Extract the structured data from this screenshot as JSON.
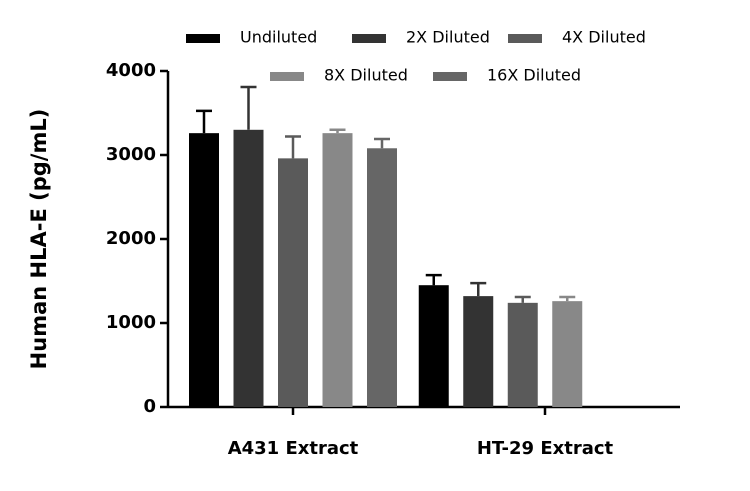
{
  "chart_data": {
    "type": "bar",
    "ylabel": "Human HLA-E (pg/mL)",
    "categories": [
      "A431 Extract",
      "HT-29 Extract"
    ],
    "series": [
      {
        "name": "Undiluted",
        "color": "#000000",
        "values": [
          3260,
          1450
        ],
        "errors": [
          265,
          120
        ]
      },
      {
        "name": "2X Diluted",
        "color": "#333333",
        "values": [
          3300,
          1320
        ],
        "errors": [
          510,
          155
        ]
      },
      {
        "name": "4X Diluted",
        "color": "#5a5a5a",
        "values": [
          2960,
          1240
        ],
        "errors": [
          260,
          70
        ]
      },
      {
        "name": "8X Diluted",
        "color": "#888888",
        "values": [
          3260,
          1260
        ],
        "errors": [
          40,
          50
        ]
      },
      {
        "name": "16X Diluted",
        "color": "#666666",
        "values": [
          3080,
          null
        ],
        "errors": [
          110,
          null
        ]
      }
    ],
    "ylim": [
      0,
      4000
    ],
    "yticks": [
      0,
      1000,
      2000,
      3000,
      4000
    ]
  }
}
